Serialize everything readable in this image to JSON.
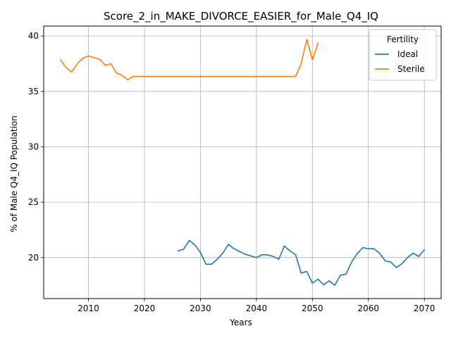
{
  "chart_data": {
    "type": "line",
    "title": "Score_2_in_MAKE_DIVORCE_EASIER_for_Male_Q4_IQ",
    "xlabel": "Years",
    "ylabel": "% of Male Q4_IQ Population",
    "xlim": [
      2002,
      2073
    ],
    "ylim": [
      16.3,
      40.9
    ],
    "xticks": [
      2010,
      2020,
      2030,
      2040,
      2050,
      2060,
      2070
    ],
    "yticks": [
      20,
      25,
      30,
      35,
      40
    ],
    "grid": true,
    "legend": {
      "title": "Fertility",
      "position": "top-right"
    },
    "series": [
      {
        "name": "Ideal",
        "color": "#1f77b4",
        "x": [
          2026,
          2027,
          2028,
          2029,
          2030,
          2031,
          2032,
          2033,
          2034,
          2035,
          2036,
          2037,
          2038,
          2039,
          2040,
          2041,
          2042,
          2043,
          2044,
          2045,
          2046,
          2047,
          2048,
          2049,
          2050,
          2051,
          2052,
          2053,
          2054,
          2055,
          2056,
          2057,
          2058,
          2059,
          2060,
          2061,
          2062,
          2063,
          2064,
          2065,
          2066,
          2067,
          2068,
          2069,
          2070
        ],
        "y": [
          20.6,
          20.75,
          21.55,
          21.15,
          20.45,
          19.4,
          19.4,
          19.85,
          20.4,
          21.2,
          20.8,
          20.55,
          20.3,
          20.15,
          20.0,
          20.25,
          20.25,
          20.1,
          19.85,
          21.05,
          20.6,
          20.25,
          18.6,
          18.75,
          17.7,
          18.05,
          17.55,
          17.9,
          17.5,
          18.4,
          18.5,
          19.6,
          20.35,
          20.9,
          20.8,
          20.8,
          20.4,
          19.7,
          19.6,
          19.1,
          19.45,
          20.0,
          20.4,
          20.1,
          20.7
        ]
      },
      {
        "name": "Sterile",
        "color": "#ff7f0e",
        "x": [
          2005,
          2006,
          2007,
          2008,
          2009,
          2010,
          2011,
          2012,
          2013,
          2014,
          2015,
          2016,
          2017,
          2018,
          2019,
          2020,
          2021,
          2022,
          2023,
          2024,
          2025,
          2026,
          2027,
          2028,
          2029,
          2030,
          2031,
          2032,
          2033,
          2034,
          2035,
          2036,
          2037,
          2038,
          2039,
          2040,
          2041,
          2042,
          2043,
          2044,
          2045,
          2046,
          2047,
          2048,
          2049,
          2050,
          2051
        ],
        "y": [
          37.85,
          37.15,
          36.75,
          37.5,
          38.0,
          38.2,
          38.05,
          37.9,
          37.35,
          37.5,
          36.65,
          36.45,
          36.05,
          36.35,
          36.35,
          36.35,
          36.35,
          36.35,
          36.35,
          36.35,
          36.35,
          36.35,
          36.35,
          36.35,
          36.35,
          36.35,
          36.35,
          36.35,
          36.35,
          36.35,
          36.35,
          36.35,
          36.35,
          36.35,
          36.35,
          36.35,
          36.35,
          36.35,
          36.35,
          36.35,
          36.35,
          36.35,
          36.35,
          37.5,
          39.7,
          37.85,
          39.35
        ]
      }
    ]
  }
}
